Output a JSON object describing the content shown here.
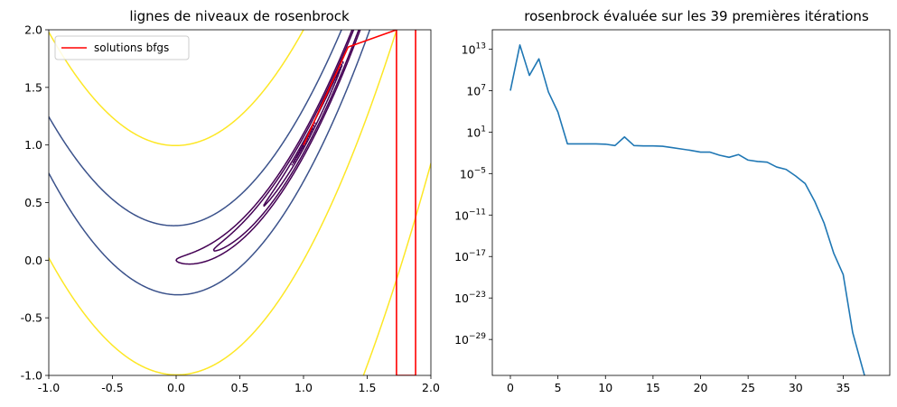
{
  "chart_data": [
    {
      "type": "line",
      "title": "lignes de niveaux de rosenbrock",
      "xlabel": "",
      "ylabel": "",
      "xlim": [
        -1.0,
        2.0
      ],
      "ylim": [
        -1.0,
        2.0
      ],
      "xticks": [
        "-1.0",
        "-0.5",
        "0.0",
        "0.5",
        "1.0",
        "1.5",
        "2.0"
      ],
      "yticks": [
        "-1.0",
        "-0.5",
        "0.0",
        "0.5",
        "1.0",
        "1.5",
        "2.0"
      ],
      "contour_levels": [
        0.01,
        0.1,
        0.5,
        1,
        10,
        100,
        1000
      ],
      "contour_colors": {
        "low": "#440154",
        "mid": "#3b528b",
        "high": "#fde725"
      },
      "legend": {
        "position": "upper-left",
        "entries": [
          "solutions bfgs"
        ]
      },
      "series": [
        {
          "name": "solutions bfgs",
          "color": "#ff0000",
          "x": [
            1.0,
            1.35,
            1.73,
            1.73,
            1.88,
            1.88
          ],
          "y": [
            1.0,
            1.85,
            2.0,
            -1.0,
            -1.0,
            2.0
          ]
        }
      ]
    },
    {
      "type": "line",
      "title": "rosenbrock évaluée sur les 39 premières itérations",
      "xlabel": "",
      "ylabel": "",
      "yscale": "log",
      "xlim": [
        -1.9,
        39.9
      ],
      "ylim_log10": [
        -34.2,
        15.8
      ],
      "xticks": [
        "0",
        "5",
        "10",
        "15",
        "20",
        "25",
        "30",
        "35"
      ],
      "yticks_exponent": [
        "13",
        "7",
        "1",
        "-5",
        "-11",
        "-17",
        "-23",
        "-29"
      ],
      "series": [
        {
          "color": "#1f77b4",
          "x": [
            0,
            1,
            2,
            3,
            4,
            5,
            6,
            7,
            8,
            9,
            10,
            11,
            12,
            13,
            14,
            15,
            16,
            17,
            18,
            19,
            20,
            21,
            22,
            23,
            24,
            25,
            26,
            27,
            28,
            29,
            30,
            31,
            32,
            33,
            34,
            35,
            36,
            37,
            38
          ],
          "log10_y": [
            7.0,
            13.6,
            9.2,
            11.6,
            6.8,
            3.9,
            -0.7,
            -0.7,
            -0.7,
            -0.7,
            -0.75,
            -0.95,
            0.3,
            -0.95,
            -1.0,
            -1.0,
            -1.05,
            -1.25,
            -1.45,
            -1.65,
            -1.9,
            -1.9,
            -2.35,
            -2.65,
            -2.25,
            -3.05,
            -3.25,
            -3.35,
            -4.05,
            -4.4,
            -5.35,
            -6.45,
            -9.0,
            -12.2,
            -16.5,
            -19.6,
            -28.0,
            -33.0,
            -37.9
          ]
        }
      ]
    }
  ]
}
